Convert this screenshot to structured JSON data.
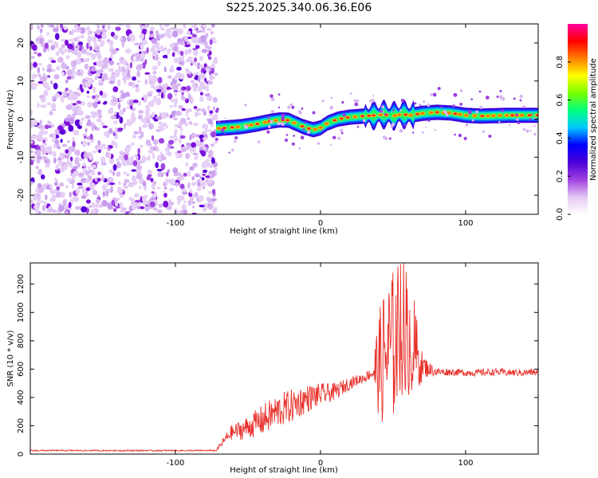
{
  "title": "S225.2025.340.06.36.E06",
  "colors": {
    "snr_line": "#e8302a",
    "colormap": [
      "#ffffff",
      "#e4c8f4",
      "#a040e0",
      "#4a00d8",
      "#0000ff",
      "#00c8ff",
      "#00ff80",
      "#78ff00",
      "#ffff00",
      "#ff8000",
      "#ff0000",
      "#ff00a0"
    ]
  },
  "chart_data": [
    {
      "type": "heatmap",
      "title": "",
      "xlabel": "Height of straight line (km)",
      "ylabel": "Frequency (Hz)",
      "xlim": [
        -200,
        150
      ],
      "ylim": [
        -25,
        25
      ],
      "xticks": [
        -100,
        0,
        100
      ],
      "xtick_labels": [
        "-100",
        "0",
        "100"
      ],
      "yticks": [
        -20,
        -10,
        0,
        10,
        20
      ],
      "ytick_labels": [
        "-20",
        "-10",
        "0",
        "10",
        "20"
      ],
      "colorbar": {
        "label": "Normalized spectral amplitude",
        "range": [
          0,
          1
        ],
        "ticks": [
          0.0,
          0.2,
          0.4,
          0.6,
          0.8
        ],
        "tick_labels": [
          "0.0",
          "0.2",
          "0.4",
          "0.6",
          "0.8"
        ]
      },
      "noise_region_x": [
        -200,
        -72
      ],
      "ridge": {
        "x": [
          -72,
          -65,
          -55,
          -45,
          -35,
          -28,
          -22,
          -18,
          -12,
          -5,
          0,
          5,
          12,
          20,
          30,
          38,
          44,
          50,
          56,
          62,
          70,
          80,
          90,
          100,
          110,
          120,
          130,
          140,
          150
        ],
        "freq": [
          -2.5,
          -2.3,
          -2.0,
          -1.4,
          -0.6,
          -0.2,
          -0.3,
          -1.0,
          -2.0,
          -2.8,
          -2.3,
          -1.0,
          0.0,
          0.5,
          0.8,
          1.0,
          1.2,
          0.8,
          1.3,
          1.0,
          1.5,
          1.8,
          1.6,
          1.0,
          0.8,
          0.9,
          1.0,
          1.0,
          1.0
        ]
      }
    },
    {
      "type": "line",
      "title": "",
      "xlabel": "Height of straight line (km)",
      "ylabel": "SNR (10 * v/v)",
      "xlim": [
        -200,
        150
      ],
      "ylim": [
        0,
        1350
      ],
      "xticks": [
        -100,
        0,
        100
      ],
      "xtick_labels": [
        "-100",
        "0",
        "100"
      ],
      "yticks": [
        0,
        200,
        400,
        600,
        800,
        1000,
        1200
      ],
      "ytick_labels": [
        "0",
        "200",
        "400",
        "600",
        "800",
        "1000",
        "1200"
      ],
      "series": [
        {
          "name": "SNR",
          "x": [
            -200,
            -150,
            -100,
            -72,
            -62,
            -55,
            -50,
            -40,
            -30,
            -20,
            -10,
            0,
            10,
            20,
            30,
            35,
            38,
            42,
            46,
            50,
            55,
            58,
            62,
            66,
            70,
            75,
            80,
            90,
            100,
            110,
            120,
            130,
            140,
            150
          ],
          "y": [
            25,
            25,
            25,
            25,
            150,
            170,
            190,
            240,
            300,
            340,
            390,
            420,
            440,
            500,
            540,
            570,
            600,
            650,
            720,
            760,
            880,
            940,
            820,
            700,
            620,
            600,
            580,
            580,
            575,
            575,
            580,
            575,
            575,
            580
          ],
          "fluctuation_envelope": [
            5,
            5,
            5,
            5,
            50,
            70,
            80,
            110,
            120,
            120,
            100,
            80,
            60,
            45,
            35,
            40,
            250,
            450,
            550,
            550,
            500,
            500,
            450,
            300,
            100,
            50,
            30,
            25,
            25,
            25,
            25,
            25,
            25,
            25
          ]
        }
      ]
    }
  ]
}
